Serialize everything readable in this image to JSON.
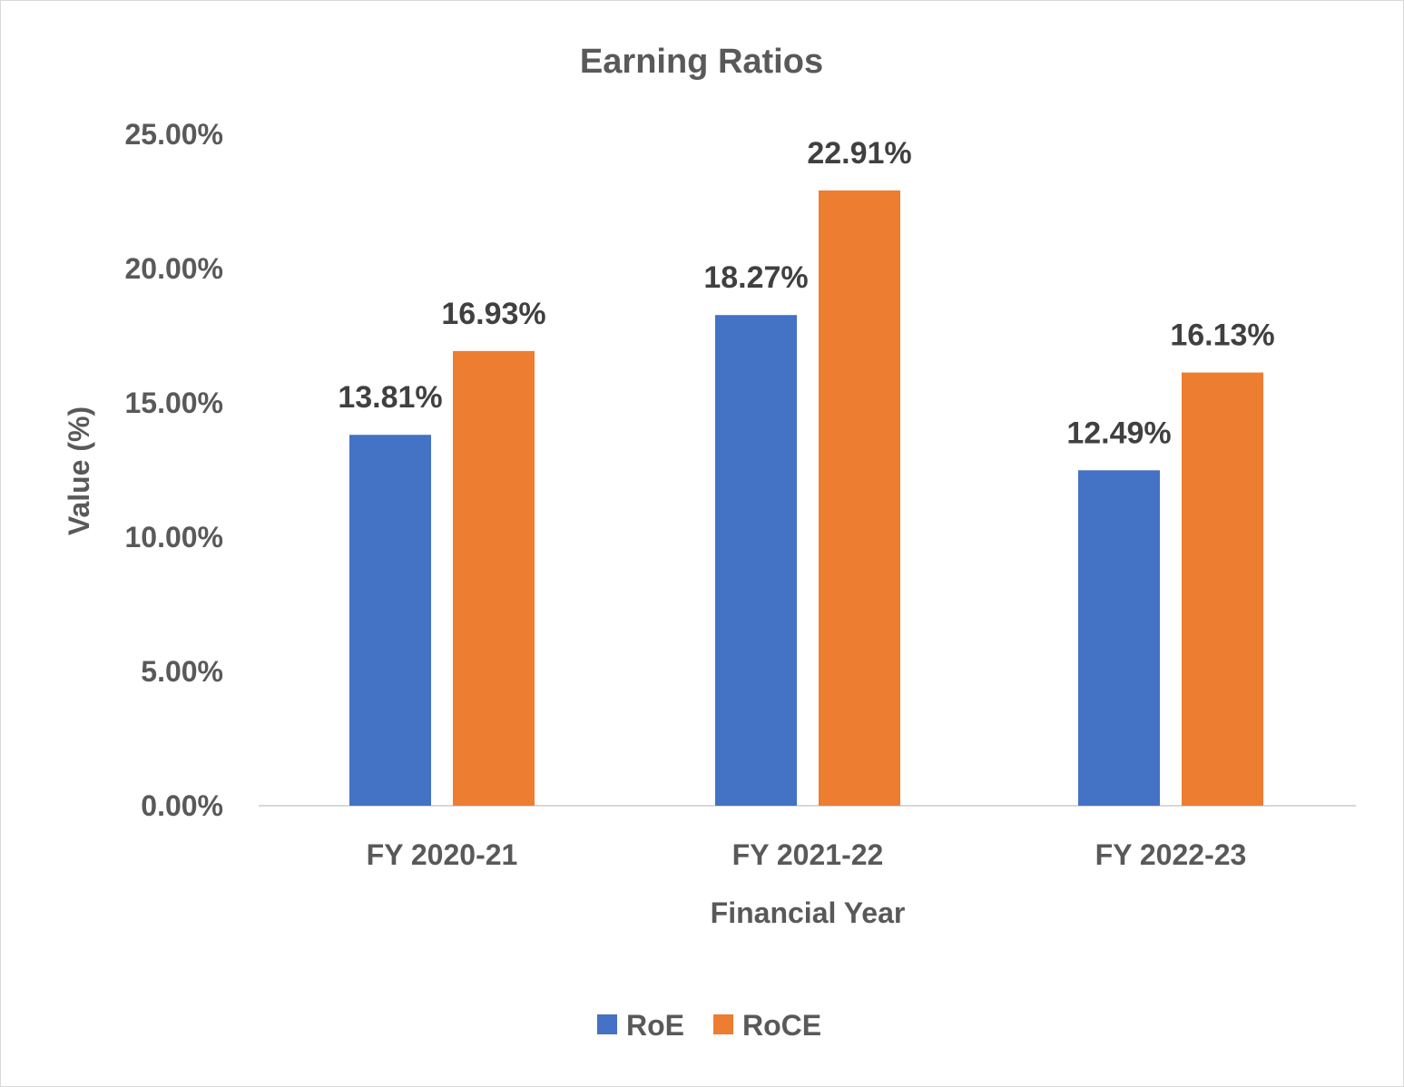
{
  "chart_data": {
    "type": "bar",
    "title": "Earning Ratios",
    "xlabel": "Financial Year",
    "ylabel": "Value (%)",
    "categories": [
      "FY 2020-21",
      "FY 2021-22",
      "FY 2022-23"
    ],
    "series": [
      {
        "name": "RoE",
        "values": [
          13.81,
          18.27,
          12.49
        ],
        "labels": [
          "13.81%",
          "18.27%",
          "12.49%"
        ],
        "color": "#4472c4"
      },
      {
        "name": "RoCE",
        "values": [
          16.93,
          22.91,
          16.13
        ],
        "labels": [
          "16.93%",
          "22.91%",
          "16.13%"
        ],
        "color": "#ed7d31"
      }
    ],
    "ylim": [
      0,
      25
    ],
    "yticks": [
      "0.00%",
      "5.00%",
      "10.00%",
      "15.00%",
      "20.00%",
      "25.00%"
    ],
    "grid": false,
    "legend_position": "bottom"
  }
}
